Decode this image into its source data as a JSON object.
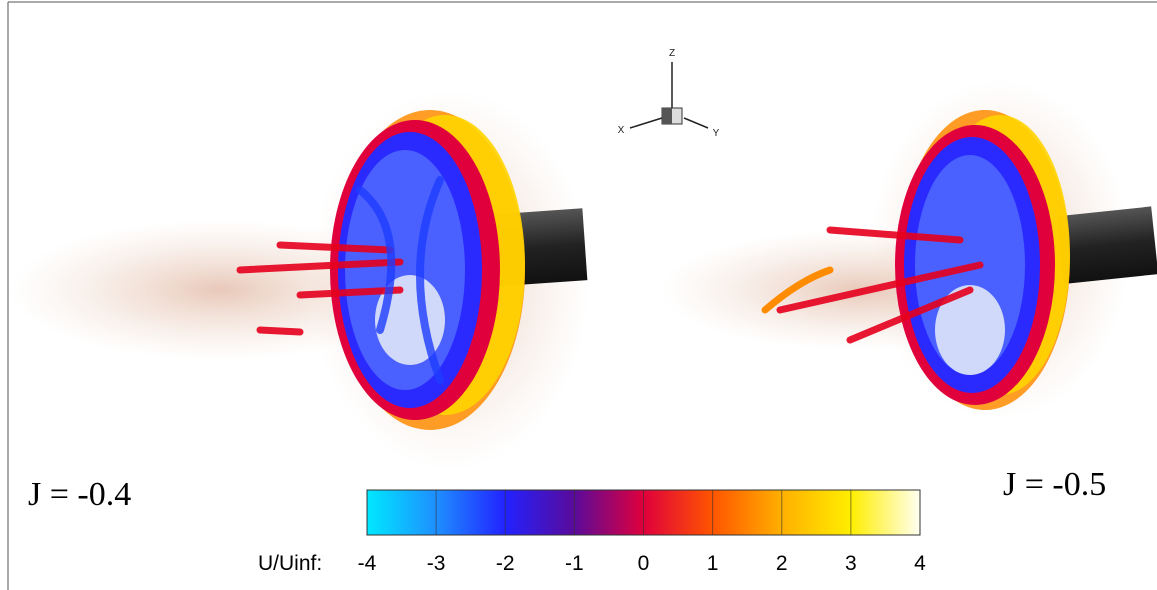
{
  "panels": [
    {
      "label": "J = -0.4"
    },
    {
      "label": "J = -0.5"
    }
  ],
  "axes_triad": {
    "z": "Z",
    "x": "X",
    "y": "Y"
  },
  "colorbar": {
    "label": "U/Uinf:",
    "lim": [
      -4,
      4
    ],
    "ticks": [
      -4,
      -3,
      -2,
      -1,
      0,
      1,
      2,
      3,
      4
    ],
    "colors": [
      "#00e8ff",
      "#1e8fff",
      "#2222ff",
      "#5a0a9a",
      "#e0003c",
      "#ff5500",
      "#ffb000",
      "#ffee00",
      "#fffff2"
    ]
  }
}
